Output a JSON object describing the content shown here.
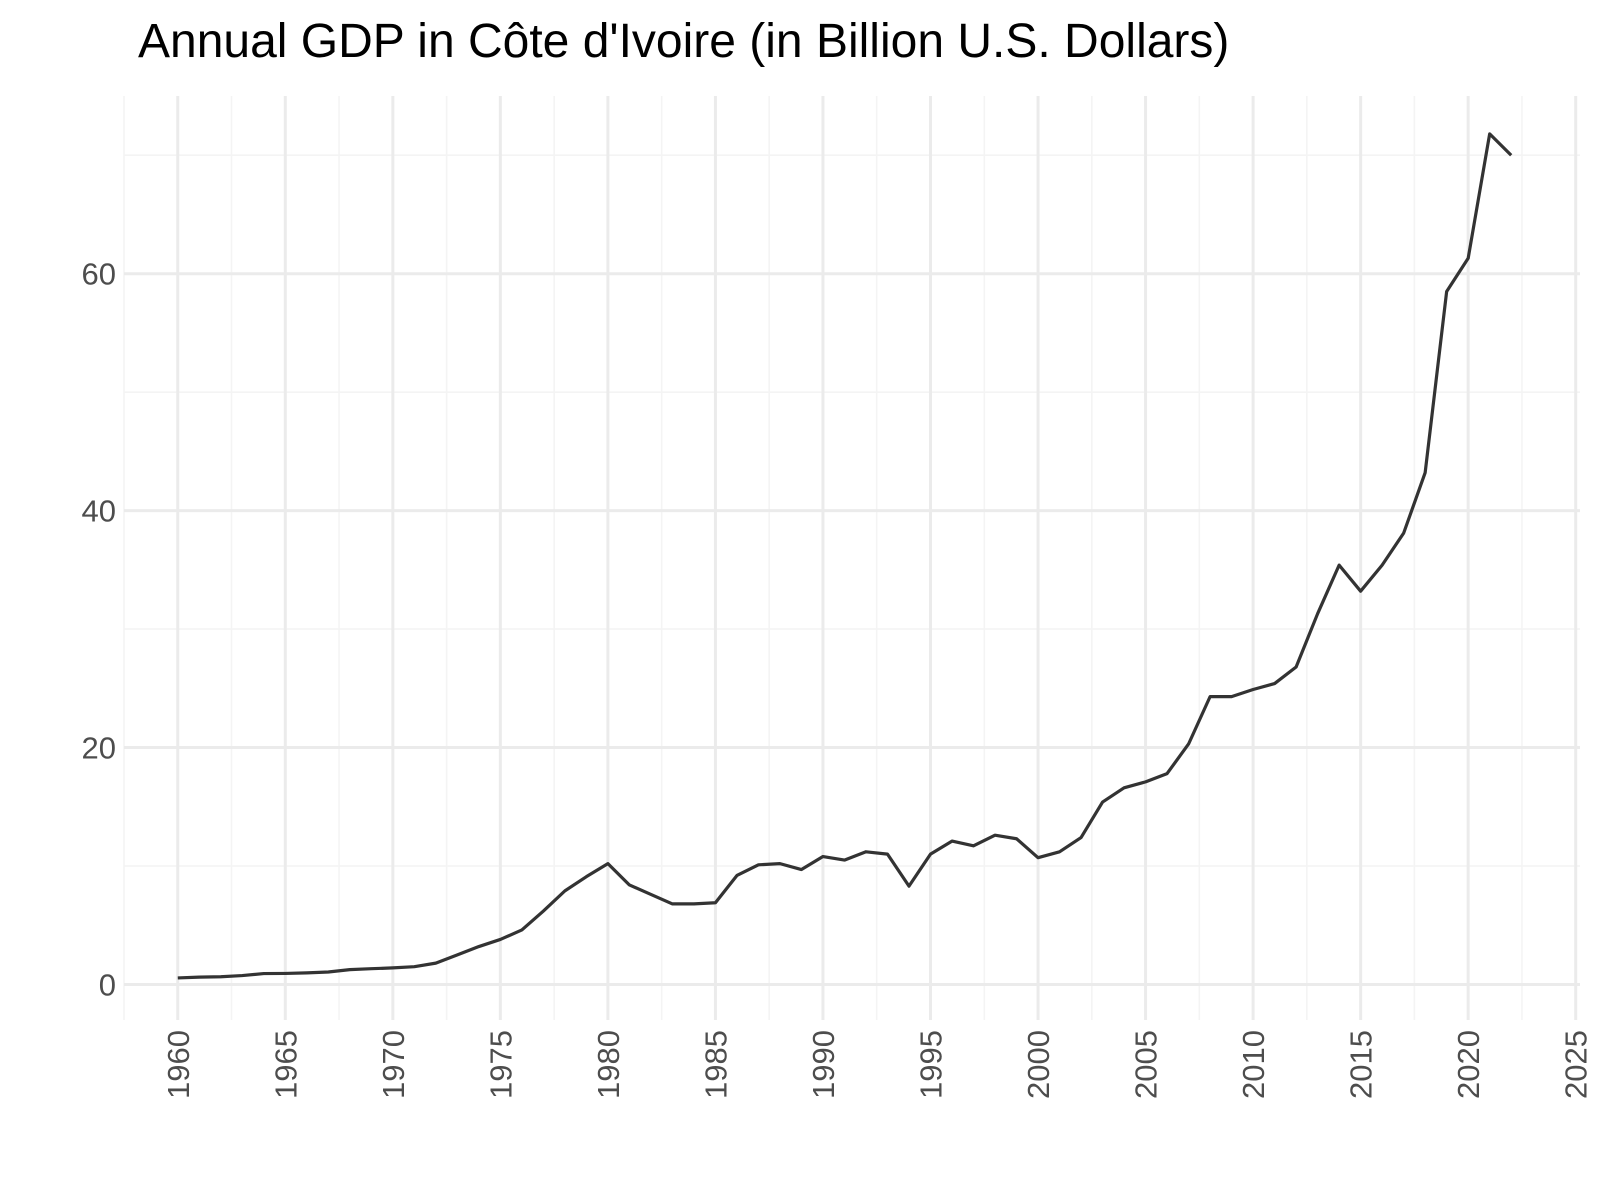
{
  "chart_data": {
    "type": "line",
    "title": "Annual GDP in Côte d'Ivoire (in Billion U.S. Dollars)",
    "xlabel": "",
    "ylabel": "",
    "xlim": [
      1957.5,
      2025.2
    ],
    "ylim": [
      -3.0,
      75.0
    ],
    "x_ticks": [
      1960,
      1965,
      1970,
      1975,
      1980,
      1985,
      1990,
      1995,
      2000,
      2005,
      2010,
      2015,
      2020,
      2025
    ],
    "y_ticks": [
      0,
      20,
      40,
      60
    ],
    "grid": true,
    "legend": "none",
    "colors": {
      "line": "#333333",
      "grid_major": "#ebebeb",
      "grid_minor": "#f4f4f4",
      "tick_label": "#4d4d4d"
    },
    "series": [
      {
        "x": [
          1960,
          1961,
          1962,
          1963,
          1964,
          1965,
          1966,
          1967,
          1968,
          1969,
          1970,
          1971,
          1972,
          1973,
          1974,
          1975,
          1976,
          1977,
          1978,
          1979,
          1980,
          1981,
          1982,
          1983,
          1984,
          1985,
          1986,
          1987,
          1988,
          1989,
          1990,
          1991,
          1992,
          1993,
          1994,
          1995,
          1996,
          1997,
          1998,
          1999,
          2000,
          2001,
          2002,
          2003,
          2004,
          2005,
          2006,
          2007,
          2008,
          2009,
          2010,
          2011,
          2012,
          2013,
          2014,
          2015,
          2016,
          2017,
          2018,
          2019,
          2020,
          2021,
          2022
        ],
        "values": [
          0.55,
          0.62,
          0.65,
          0.75,
          0.92,
          0.93,
          0.98,
          1.05,
          1.25,
          1.33,
          1.4,
          1.5,
          1.8,
          2.5,
          3.2,
          3.8,
          4.6,
          6.2,
          7.9,
          9.1,
          10.2,
          8.4,
          7.6,
          6.8,
          6.8,
          6.9,
          9.2,
          10.1,
          10.2,
          9.7,
          10.8,
          10.5,
          11.2,
          11.0,
          8.3,
          11.0,
          12.1,
          11.7,
          12.6,
          12.3,
          10.7,
          11.2,
          12.4,
          15.4,
          16.6,
          17.1,
          17.8,
          20.3,
          24.3,
          24.3,
          24.9,
          25.4,
          26.8,
          31.3,
          35.4,
          33.2,
          35.4,
          38.1,
          43.2,
          58.5,
          61.3,
          71.8,
          70.0
        ]
      }
    ]
  }
}
